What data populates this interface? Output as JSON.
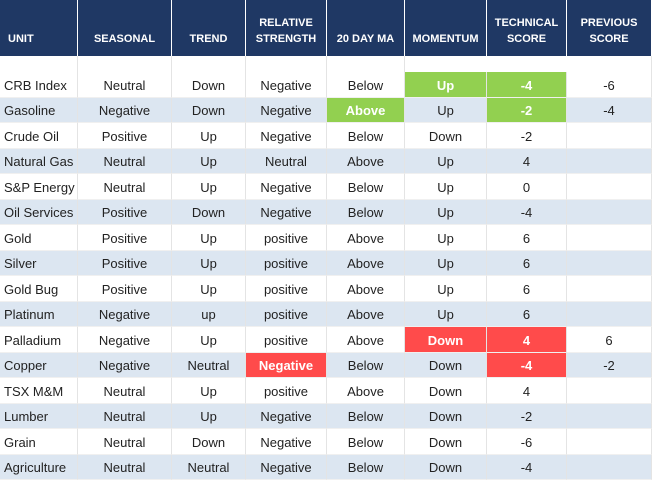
{
  "table": {
    "header": [
      "UNIT",
      "SEASONAL",
      "TREND",
      "RELATIVE STRENGTH",
      "20 DAY MA",
      "MOMENTUM",
      "TECHNICAL SCORE",
      "PREVIOUS SCORE"
    ],
    "rows": [
      {
        "cells": [
          "CRB Index",
          "Neutral",
          "Down",
          "Negative",
          "Below",
          "Up",
          -4,
          -6
        ],
        "highlights": [
          [
            5,
            "#92d050"
          ],
          [
            6,
            "#92d050"
          ]
        ]
      },
      {
        "cells": [
          "Gasoline",
          "Negative",
          "Down",
          "Negative",
          "Above",
          "Up",
          -2,
          -4
        ],
        "highlights": [
          [
            4,
            "#92d050"
          ],
          [
            6,
            "#92d050"
          ]
        ]
      },
      {
        "cells": [
          "Crude Oil",
          "Positive",
          "Up",
          "Negative",
          "Below",
          "Down",
          -2,
          null
        ]
      },
      {
        "cells": [
          "Natural Gas",
          "Neutral",
          "Up",
          "Neutral",
          "Above",
          "Up",
          4,
          null
        ]
      },
      {
        "cells": [
          "S&P Energy",
          "Neutral",
          "Up",
          "Negative",
          "Below",
          "Up",
          0,
          null
        ]
      },
      {
        "cells": [
          "Oil Services",
          "Positive",
          "Down",
          "Negative",
          "Below",
          "Up",
          -4,
          null
        ]
      },
      {
        "cells": [
          "Gold",
          "Positive",
          "Up",
          "positive",
          "Above",
          "Up",
          6,
          null
        ]
      },
      {
        "cells": [
          "Silver",
          "Positive",
          "Up",
          "positive",
          "Above",
          "Up",
          6,
          null
        ]
      },
      {
        "cells": [
          "Gold Bug",
          "Positive",
          "Up",
          "positive",
          "Above",
          "Up",
          6,
          null
        ]
      },
      {
        "cells": [
          "Platinum",
          "Negative",
          "up",
          "positive",
          "Above",
          "Up",
          6,
          null
        ]
      },
      {
        "cells": [
          "Palladium",
          "Negative",
          "Up",
          "positive",
          "Above",
          "Down",
          4,
          6
        ],
        "highlights": [
          [
            5,
            "#ff4b4b"
          ],
          [
            6,
            "#ff4b4b"
          ]
        ]
      },
      {
        "cells": [
          "Copper",
          "Negative",
          "Neutral",
          "Negative",
          "Below",
          "Down",
          -4,
          -2
        ],
        "highlights": [
          [
            3,
            "#ff4b4b"
          ],
          [
            6,
            "#ff4b4b"
          ]
        ]
      },
      {
        "cells": [
          "TSX M&M",
          "Neutral",
          "Up",
          "positive",
          "Above",
          "Down",
          4,
          null
        ]
      },
      {
        "cells": [
          "Lumber",
          "Neutral",
          "Up",
          "Negative",
          "Below",
          "Down",
          -2,
          null
        ]
      },
      {
        "cells": [
          "Grain",
          "Neutral",
          "Down",
          "Negative",
          "Below",
          "Down",
          -6,
          null
        ]
      },
      {
        "cells": [
          "Agriculture",
          "Neutral",
          "Neutral",
          "Negative",
          "Below",
          "Down",
          -4,
          null
        ]
      }
    ],
    "stripe_color": "#dce6f1"
  }
}
